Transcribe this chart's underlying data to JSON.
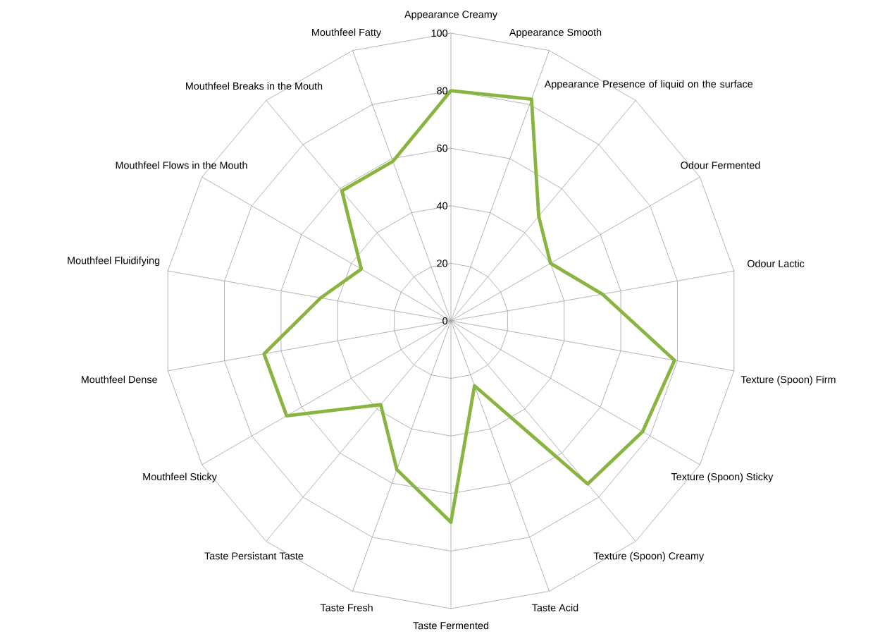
{
  "chart_data": {
    "type": "radar",
    "categories": [
      "Appearance Creamy",
      "Appearance Smooth",
      "Appearance Presence of liquid on the surface",
      "Odour Fermented",
      "Odour Lactic",
      "Texture (Spoon) Firm",
      "Texture (Spoon) Sticky",
      "Texture (Spoon) Creamy",
      "Taste Acid",
      "Taste Fermented",
      "Taste Fresh",
      "Taste Persistant Taste",
      "Mouthfeel Sticky",
      "Mouthfeel Dense",
      "Mouthfeel Fluidifying",
      "Mouthfeel Flows in the Mouth",
      "Mouthfeel Breaks in the Mouth",
      "Mouthfeel Fatty"
    ],
    "series": [
      {
        "color": "#8ab440",
        "values": [
          80,
          82,
          47.5,
          40,
          53.5,
          79,
          77,
          74,
          24,
          70,
          55,
          38,
          66,
          66,
          46,
          36,
          59,
          59
        ]
      }
    ],
    "ylim": [
      0,
      100
    ],
    "yticks": [
      0,
      20,
      40,
      60,
      80,
      100
    ],
    "grid": true
  }
}
